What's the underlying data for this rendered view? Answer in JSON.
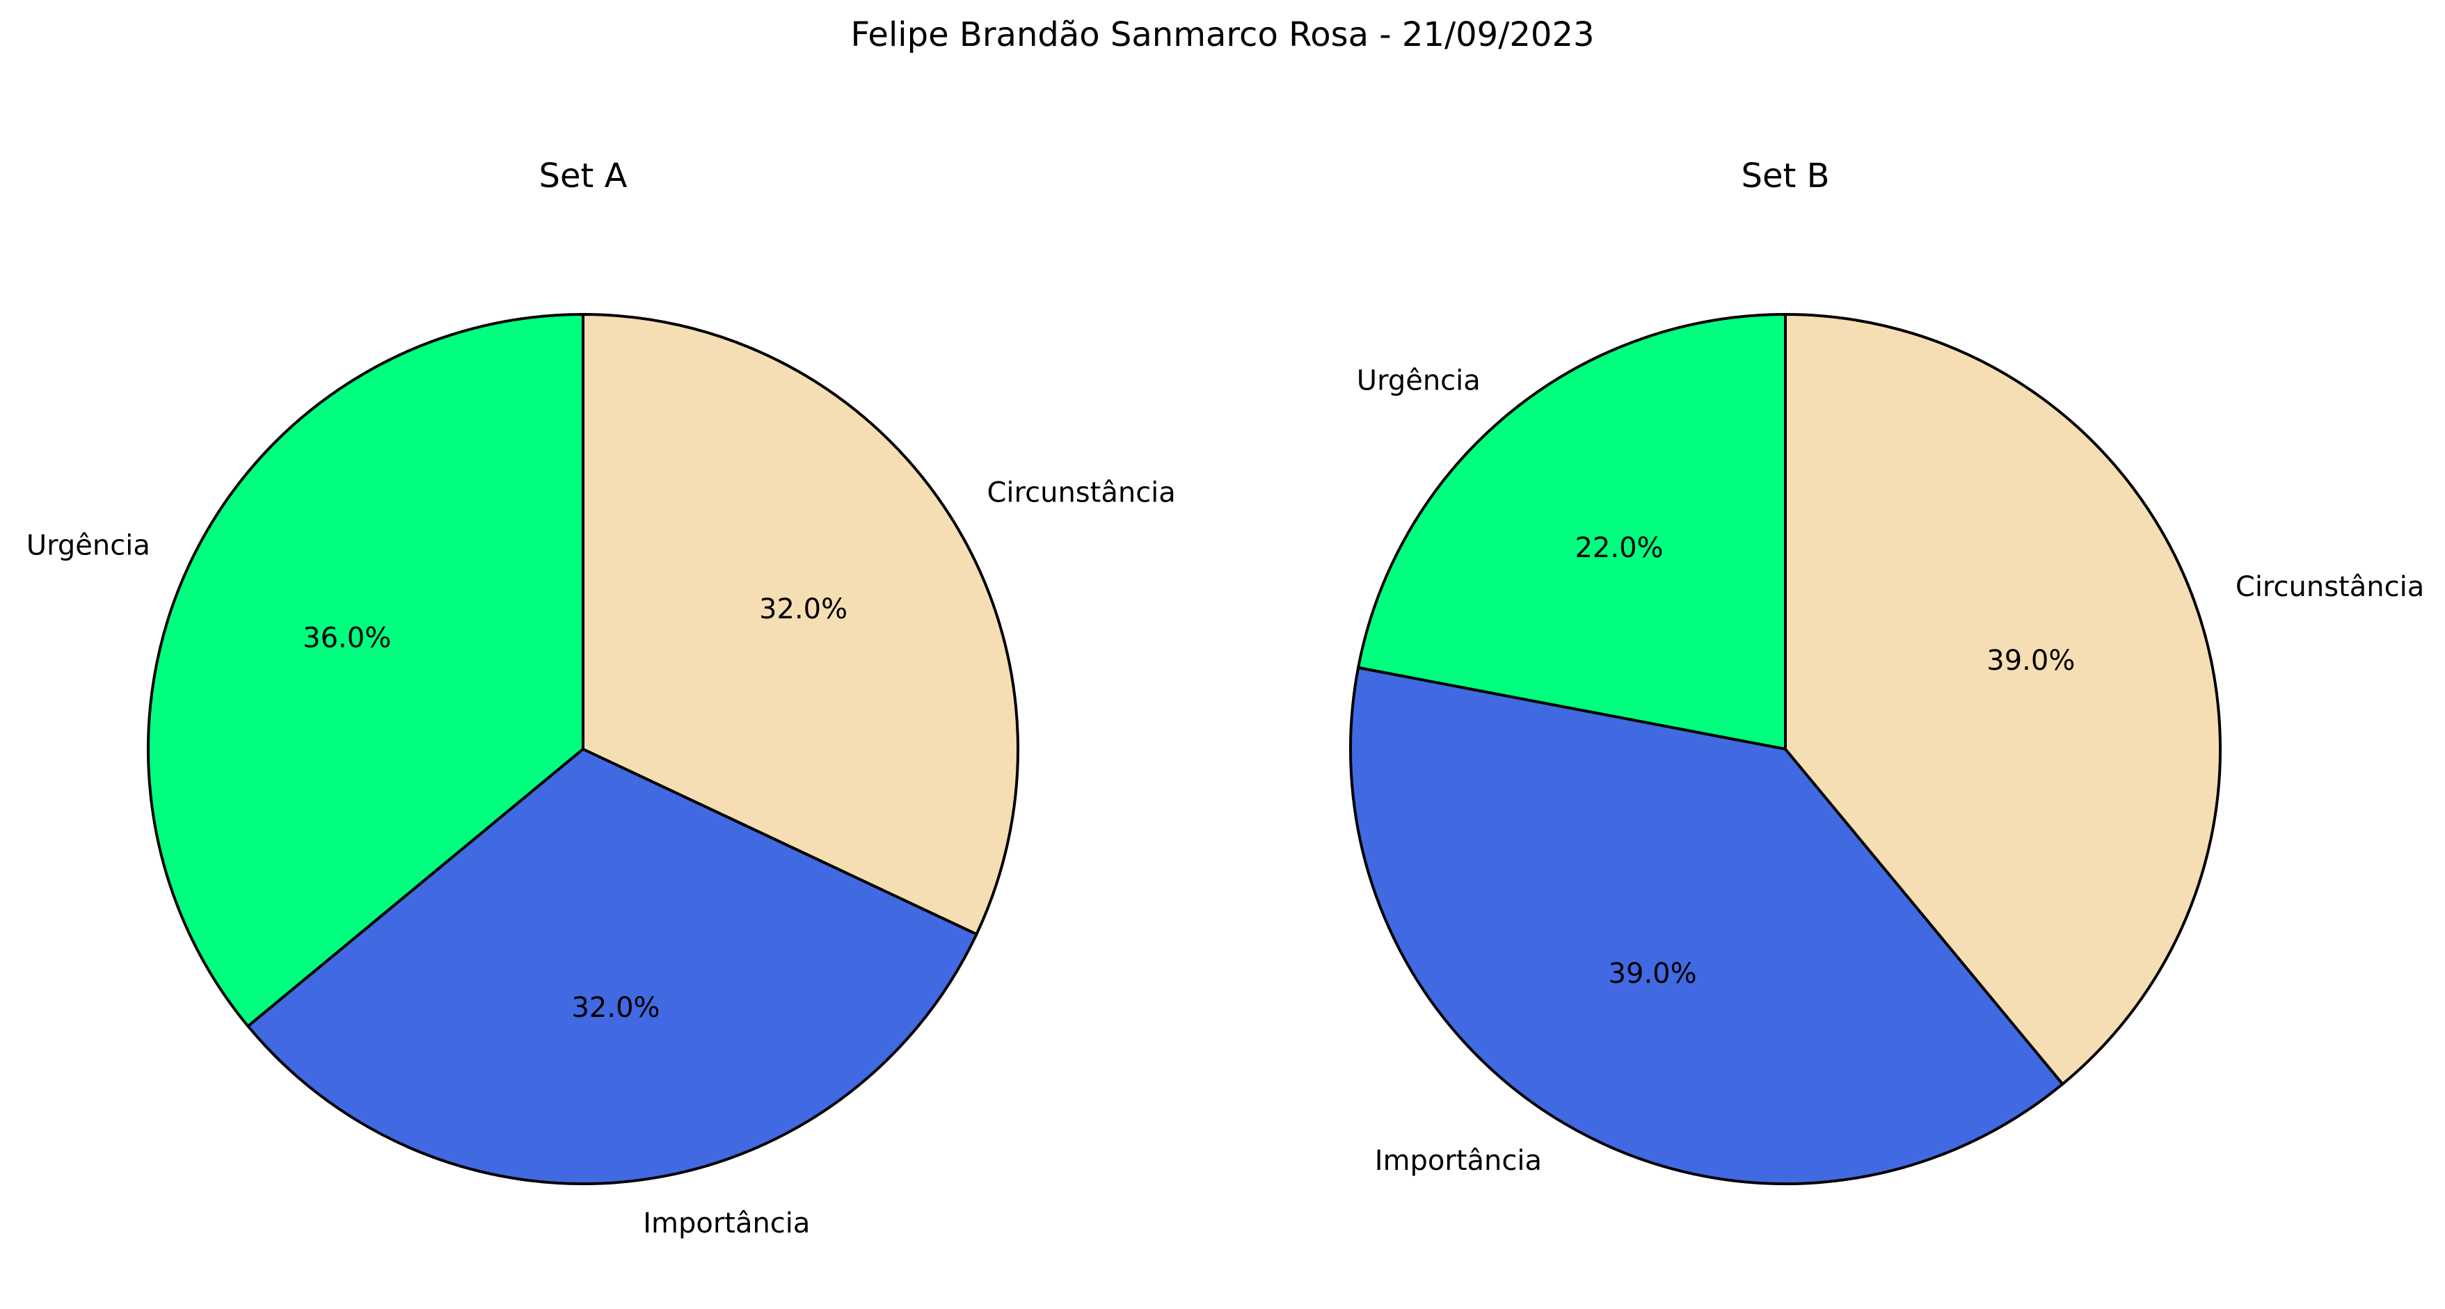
{
  "suptitle": "Felipe Brandão Sanmarco Rosa - 21/09/2023",
  "chart_data": [
    {
      "type": "pie",
      "title": "Set A",
      "categories": [
        "Urgência",
        "Importância",
        "Circunstância"
      ],
      "values": [
        36.0,
        32.0,
        32.0
      ],
      "percent_labels": [
        "36.0%",
        "32.0%",
        "32.0%"
      ],
      "colors": [
        "#00FF7F",
        "#4169E1",
        "#F5DEB3"
      ],
      "start_angle_deg": 90,
      "direction": "counterclockwise",
      "edge_color": "#000000"
    },
    {
      "type": "pie",
      "title": "Set B",
      "categories": [
        "Urgência",
        "Importância",
        "Circunstância"
      ],
      "values": [
        22.0,
        39.0,
        39.0
      ],
      "percent_labels": [
        "22.0%",
        "39.0%",
        "39.0%"
      ],
      "colors": [
        "#00FF7F",
        "#4169E1",
        "#F5DEB3"
      ],
      "start_angle_deg": 90,
      "direction": "counterclockwise",
      "edge_color": "#000000"
    }
  ]
}
